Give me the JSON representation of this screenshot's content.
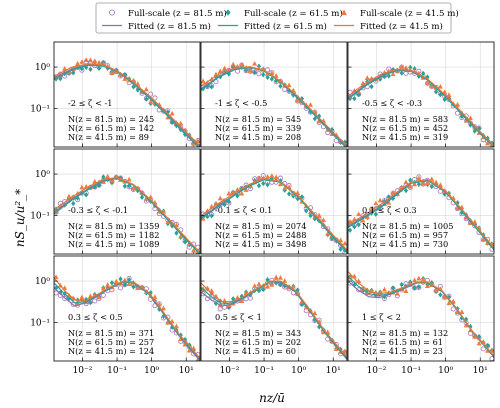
{
  "chart_data": {
    "type": "scatter",
    "xlabel": "nz/ū",
    "ylabel": "nS_u/u²_*",
    "x_scale": "log",
    "y_scale": "log",
    "xlim": [
      0.0015,
      25
    ],
    "ylim": [
      0.012,
      4
    ],
    "x_ticks": [
      0.01,
      0.1,
      1,
      10
    ],
    "x_tick_labels": [
      "10⁻²",
      "10⁻¹",
      "10⁰",
      "10¹"
    ],
    "y_ticks": [
      0.1,
      1
    ],
    "y_tick_labels": [
      "10⁻¹",
      "10⁰"
    ],
    "grid": true,
    "legend_position": "top-center",
    "series_styles": [
      {
        "name": "Full-scale (z = 81.5 m)",
        "kind": "marker",
        "marker": "circle",
        "color": "#b07cc6"
      },
      {
        "name": "Full-scale (z = 61.5 m)",
        "kind": "marker",
        "marker": "diamond",
        "color": "#2aa198"
      },
      {
        "name": "Full-scale (z = 41.5 m)",
        "kind": "marker",
        "marker": "triangle",
        "color": "#f07b3f"
      },
      {
        "name": "Fitted (z = 81.5 m)",
        "kind": "line",
        "color": "#7a7aa8"
      },
      {
        "name": "Fitted (z = 61.5 m)",
        "kind": "line",
        "color": "#2aa198"
      },
      {
        "name": "Fitted (z = 41.5 m)",
        "kind": "line",
        "color": "#e07a3a"
      }
    ],
    "panels": [
      {
        "label": "-2 ≤ ζ < -1",
        "counts": [
          "N(z = 81.5 m) = 245",
          "N(z = 61.5 m) = 142",
          "N(z = 41.5 m) = 89"
        ],
        "fitted_curves": [
          {
            "x": [
              0.0015,
              0.005,
              0.015,
              0.04,
              0.1,
              0.3,
              1,
              3,
              10,
              25
            ],
            "y": [
              0.55,
              0.9,
              1.15,
              1.1,
              0.8,
              0.42,
              0.17,
              0.07,
              0.025,
              0.012
            ]
          },
          {
            "x": [
              0.0015,
              0.005,
              0.015,
              0.04,
              0.1,
              0.3,
              1,
              3,
              10,
              25
            ],
            "y": [
              0.5,
              0.85,
              1.1,
              1.05,
              0.78,
              0.4,
              0.16,
              0.065,
              0.023,
              0.011
            ]
          },
          {
            "x": [
              0.0015,
              0.005,
              0.015,
              0.04,
              0.1,
              0.3,
              1,
              3,
              10,
              25
            ],
            "y": [
              0.6,
              1.0,
              1.2,
              1.12,
              0.82,
              0.43,
              0.18,
              0.075,
              0.027,
              0.013
            ]
          }
        ]
      },
      {
        "label": "-1 ≤ ζ < -0.5",
        "counts": [
          "N(z = 81.5 m) = 545",
          "N(z = 61.5 m) = 339",
          "N(z = 41.5 m) = 208"
        ],
        "fitted_curves": [
          {
            "x": [
              0.0015,
              0.005,
              0.015,
              0.04,
              0.1,
              0.3,
              1,
              3,
              10,
              25
            ],
            "y": [
              0.3,
              0.6,
              0.9,
              1.0,
              0.82,
              0.45,
              0.18,
              0.07,
              0.025,
              0.012
            ]
          },
          {
            "x": [
              0.0015,
              0.005,
              0.015,
              0.04,
              0.1,
              0.3,
              1,
              3,
              10,
              25
            ],
            "y": [
              0.28,
              0.58,
              0.88,
              0.98,
              0.8,
              0.44,
              0.17,
              0.068,
              0.024,
              0.011
            ]
          },
          {
            "x": [
              0.0015,
              0.005,
              0.015,
              0.04,
              0.1,
              0.3,
              1,
              3,
              10,
              25
            ],
            "y": [
              0.35,
              0.68,
              0.95,
              1.02,
              0.83,
              0.46,
              0.19,
              0.075,
              0.027,
              0.013
            ]
          }
        ]
      },
      {
        "label": "-0.5 ≤ ζ < -0.3",
        "counts": [
          "N(z = 81.5 m) = 583",
          "N(z = 61.5 m) = 452",
          "N(z = 41.5 m) = 319"
        ],
        "fitted_curves": [
          {
            "x": [
              0.0015,
              0.005,
              0.015,
              0.04,
              0.1,
              0.3,
              1,
              3,
              10,
              25
            ],
            "y": [
              0.18,
              0.38,
              0.65,
              0.85,
              0.82,
              0.5,
              0.2,
              0.075,
              0.026,
              0.012
            ]
          },
          {
            "x": [
              0.0015,
              0.005,
              0.015,
              0.04,
              0.1,
              0.3,
              1,
              3,
              10,
              25
            ],
            "y": [
              0.17,
              0.36,
              0.62,
              0.83,
              0.8,
              0.49,
              0.19,
              0.072,
              0.025,
              0.012
            ]
          },
          {
            "x": [
              0.0015,
              0.005,
              0.015,
              0.04,
              0.1,
              0.3,
              1,
              3,
              10,
              25
            ],
            "y": [
              0.2,
              0.42,
              0.7,
              0.88,
              0.84,
              0.52,
              0.21,
              0.08,
              0.028,
              0.013
            ]
          }
        ]
      },
      {
        "label": "-0.3 ≤ ζ < -0.1",
        "counts": [
          "N(z = 81.5 m) = 1359",
          "N(z = 61.5 m) = 1182",
          "N(z = 41.5 m) = 1089"
        ],
        "fitted_curves": [
          {
            "x": [
              0.0015,
              0.005,
              0.015,
              0.04,
              0.1,
              0.3,
              1,
              3,
              10,
              25
            ],
            "y": [
              0.12,
              0.25,
              0.45,
              0.7,
              0.8,
              0.55,
              0.22,
              0.08,
              0.027,
              0.012
            ]
          },
          {
            "x": [
              0.0015,
              0.005,
              0.015,
              0.04,
              0.1,
              0.3,
              1,
              3,
              10,
              25
            ],
            "y": [
              0.11,
              0.24,
              0.43,
              0.68,
              0.78,
              0.54,
              0.21,
              0.078,
              0.026,
              0.012
            ]
          },
          {
            "x": [
              0.0015,
              0.005,
              0.015,
              0.04,
              0.1,
              0.3,
              1,
              3,
              10,
              25
            ],
            "y": [
              0.14,
              0.28,
              0.5,
              0.74,
              0.82,
              0.56,
              0.23,
              0.085,
              0.029,
              0.013
            ]
          }
        ]
      },
      {
        "label": "-0.1 ≤ ζ < 0.1",
        "counts": [
          "N(z = 81.5 m) = 2074",
          "N(z = 61.5 m) = 2488",
          "N(z = 41.5 m) = 3498"
        ],
        "fitted_curves": [
          {
            "x": [
              0.0015,
              0.005,
              0.015,
              0.04,
              0.1,
              0.3,
              1,
              3,
              10,
              25
            ],
            "y": [
              0.09,
              0.18,
              0.33,
              0.55,
              0.75,
              0.65,
              0.28,
              0.1,
              0.032,
              0.014
            ]
          },
          {
            "x": [
              0.0015,
              0.005,
              0.015,
              0.04,
              0.1,
              0.3,
              1,
              3,
              10,
              25
            ],
            "y": [
              0.085,
              0.17,
              0.32,
              0.53,
              0.73,
              0.64,
              0.27,
              0.095,
              0.03,
              0.013
            ]
          },
          {
            "x": [
              0.0015,
              0.005,
              0.015,
              0.04,
              0.1,
              0.3,
              1,
              3,
              10,
              25
            ],
            "y": [
              0.1,
              0.2,
              0.36,
              0.58,
              0.78,
              0.66,
              0.29,
              0.105,
              0.034,
              0.015
            ]
          }
        ]
      },
      {
        "label": "0.1 ≤ ζ < 0.3",
        "counts": [
          "N(z = 81.5 m) = 1005",
          "N(z = 61.5 m) = 957",
          "N(z = 41.5 m) = 730"
        ],
        "fitted_curves": [
          {
            "x": [
              0.0015,
              0.005,
              0.015,
              0.04,
              0.1,
              0.3,
              1,
              3,
              10,
              25
            ],
            "y": [
              0.055,
              0.1,
              0.18,
              0.35,
              0.62,
              0.72,
              0.38,
              0.13,
              0.04,
              0.016
            ]
          },
          {
            "x": [
              0.0015,
              0.005,
              0.015,
              0.04,
              0.1,
              0.3,
              1,
              3,
              10,
              25
            ],
            "y": [
              0.052,
              0.095,
              0.17,
              0.33,
              0.6,
              0.7,
              0.37,
              0.125,
              0.038,
              0.015
            ]
          },
          {
            "x": [
              0.0015,
              0.005,
              0.015,
              0.04,
              0.1,
              0.3,
              1,
              3,
              10,
              25
            ],
            "y": [
              0.06,
              0.11,
              0.2,
              0.37,
              0.64,
              0.74,
              0.39,
              0.14,
              0.042,
              0.017
            ]
          }
        ]
      },
      {
        "label": "0.3 ≤ ζ < 0.5",
        "counts": [
          "N(z = 81.5 m) = 371",
          "N(z = 61.5 m) = 257",
          "N(z = 41.5 m) = 124"
        ],
        "fitted_curves": [
          {
            "x": [
              0.0015,
              0.003,
              0.006,
              0.012,
              0.025,
              0.06,
              0.15,
              0.3,
              0.8,
              2,
              6,
              25
            ],
            "y": [
              0.7,
              0.4,
              0.25,
              0.3,
              0.42,
              0.65,
              0.95,
              0.9,
              0.5,
              0.18,
              0.05,
              0.012
            ]
          },
          {
            "x": [
              0.0015,
              0.003,
              0.006,
              0.012,
              0.025,
              0.06,
              0.15,
              0.3,
              0.8,
              2,
              6,
              25
            ],
            "y": [
              0.9,
              0.5,
              0.3,
              0.32,
              0.44,
              0.67,
              0.97,
              0.92,
              0.52,
              0.19,
              0.052,
              0.013
            ]
          },
          {
            "x": [
              0.0015,
              0.003,
              0.006,
              0.012,
              0.025,
              0.06,
              0.15,
              0.3,
              0.8,
              2,
              6,
              25
            ],
            "y": [
              1.2,
              0.6,
              0.35,
              0.34,
              0.46,
              0.7,
              1.0,
              0.95,
              0.54,
              0.2,
              0.055,
              0.014
            ]
          }
        ]
      },
      {
        "label": "0.5 ≤ ζ < 1",
        "counts": [
          "N(z = 81.5 m) = 343",
          "N(z = 61.5 m) = 202",
          "N(z = 41.5 m) = 60"
        ],
        "fitted_curves": [
          {
            "x": [
              0.0015,
              0.003,
              0.006,
              0.012,
              0.025,
              0.06,
              0.15,
              0.3,
              0.8,
              2,
              6,
              25
            ],
            "y": [
              0.55,
              0.35,
              0.25,
              0.28,
              0.38,
              0.6,
              0.95,
              0.95,
              0.55,
              0.2,
              0.055,
              0.013
            ]
          },
          {
            "x": [
              0.0015,
              0.003,
              0.006,
              0.012,
              0.025,
              0.06,
              0.15,
              0.3,
              0.8,
              2,
              6,
              25
            ],
            "y": [
              0.7,
              0.42,
              0.28,
              0.3,
              0.4,
              0.62,
              0.97,
              0.97,
              0.57,
              0.21,
              0.057,
              0.014
            ]
          },
          {
            "x": [
              0.0015,
              0.003,
              0.006,
              0.012,
              0.025,
              0.06,
              0.15,
              0.3,
              0.8,
              2,
              6,
              25
            ],
            "y": [
              0.9,
              0.5,
              0.32,
              0.32,
              0.42,
              0.65,
              1.0,
              1.0,
              0.6,
              0.22,
              0.06,
              0.015
            ]
          }
        ]
      },
      {
        "label": "1 ≤ ζ < 2",
        "counts": [
          "N(z = 81.5 m) = 132",
          "N(z = 61.5 m) = 61",
          "N(z = 41.5 m) = 23"
        ],
        "fitted_curves": [
          {
            "x": [
              0.0015,
              0.003,
              0.006,
              0.012,
              0.025,
              0.06,
              0.15,
              0.3,
              0.8,
              2,
              6,
              25
            ],
            "y": [
              1.0,
              0.6,
              0.42,
              0.4,
              0.48,
              0.65,
              0.9,
              0.9,
              0.55,
              0.22,
              0.06,
              0.015
            ]
          },
          {
            "x": [
              0.0015,
              0.003,
              0.006,
              0.012,
              0.025,
              0.06,
              0.15,
              0.3,
              0.8,
              2,
              6,
              25
            ],
            "y": [
              1.3,
              0.75,
              0.5,
              0.45,
              0.5,
              0.68,
              0.92,
              0.92,
              0.56,
              0.22,
              0.06,
              0.015
            ]
          },
          {
            "x": [
              0.0015,
              0.003,
              0.006,
              0.012,
              0.025,
              0.06,
              0.15,
              0.3,
              0.8,
              2,
              6,
              25
            ],
            "y": [
              1.7,
              0.9,
              0.58,
              0.5,
              0.54,
              0.7,
              0.95,
              0.95,
              0.58,
              0.23,
              0.062,
              0.016
            ]
          }
        ]
      }
    ]
  }
}
